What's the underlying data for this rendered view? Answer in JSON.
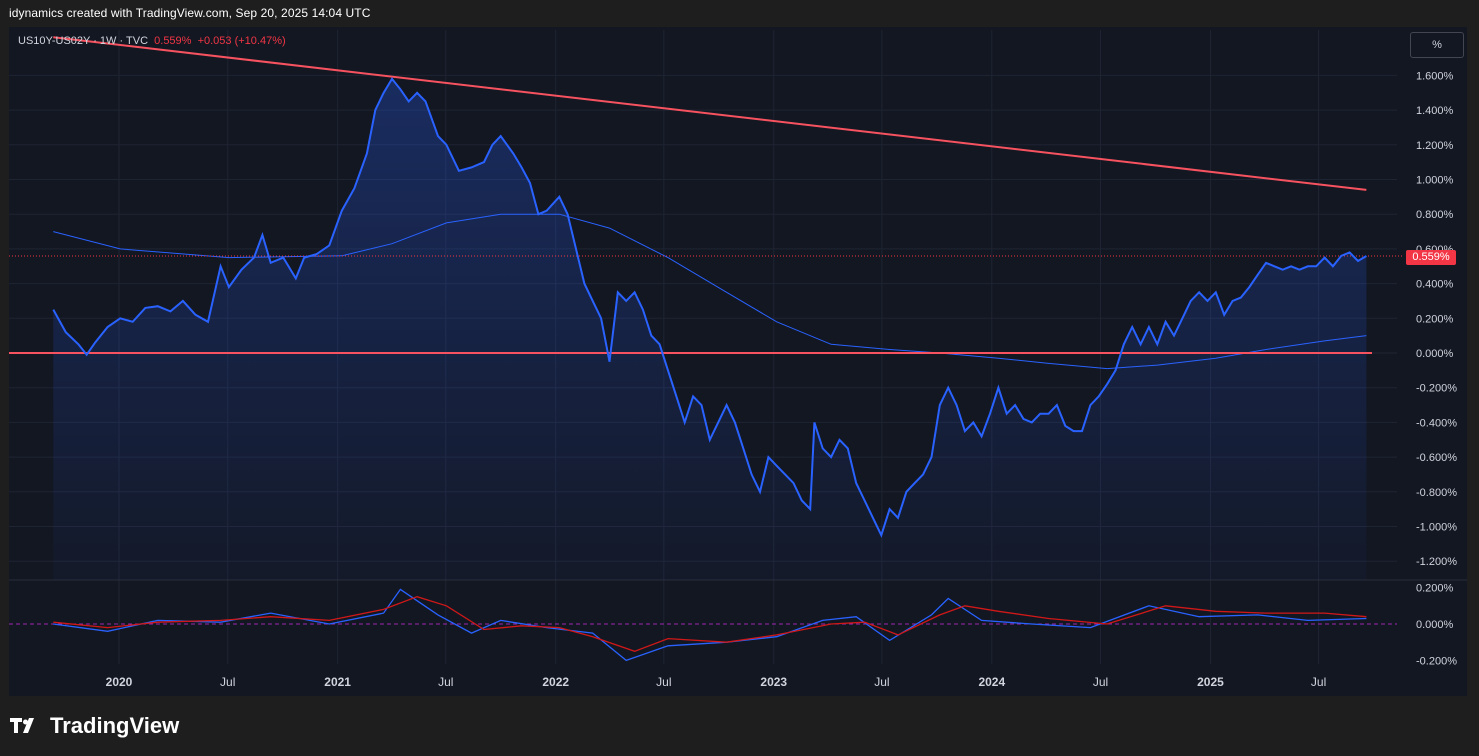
{
  "header": {
    "title": "idynamics created with TradingView.com, Sep 20, 2025 14:04 UTC"
  },
  "legend": {
    "symbol": "US10Y-US02Y · 1W · TVC",
    "price": "0.559%",
    "change": "+0.053 (+10.47%)"
  },
  "scale_button": "%",
  "last_price_label": "0.559%",
  "brand": {
    "name": "TradingView"
  },
  "colors": {
    "background": "#131722",
    "series": "#2962ff",
    "ma": "#2962ff",
    "trendline": "#f7525f",
    "zero_line": "#f7525f",
    "signal": "#ff0000"
  },
  "chart_data": [
    {
      "type": "area",
      "series_name": "US10Y-US02Y",
      "yunit": "%",
      "ylim": [
        -1.3,
        1.8
      ],
      "y_ticks": [
        "1.600%",
        "1.400%",
        "1.200%",
        "1.000%",
        "0.800%",
        "0.600%",
        "0.400%",
        "0.200%",
        "0.000%",
        "-0.200%",
        "-0.400%",
        "-0.600%",
        "-0.800%",
        "-1.000%",
        "-1.200%"
      ],
      "x_labels": [
        "2020",
        "Jul",
        "2021",
        "Jul",
        "2022",
        "Jul",
        "2023",
        "Jul",
        "2024",
        "Jul",
        "2025",
        "Jul"
      ],
      "x_label_dates": [
        "2020-01-01",
        "2020-07-01",
        "2021-01-01",
        "2021-07-01",
        "2022-01-01",
        "2022-07-01",
        "2023-01-01",
        "2023-07-01",
        "2024-01-01",
        "2024-07-01",
        "2025-01-01",
        "2025-07-01"
      ],
      "grid": true,
      "points": [
        [
          "2019-09-13",
          0.25
        ],
        [
          "2019-10-04",
          0.12
        ],
        [
          "2019-10-25",
          0.05
        ],
        [
          "2019-11-08",
          -0.01
        ],
        [
          "2019-11-22",
          0.06
        ],
        [
          "2019-12-13",
          0.15
        ],
        [
          "2020-01-03",
          0.2
        ],
        [
          "2020-01-24",
          0.18
        ],
        [
          "2020-02-14",
          0.26
        ],
        [
          "2020-03-06",
          0.27
        ],
        [
          "2020-03-27",
          0.24
        ],
        [
          "2020-04-17",
          0.3
        ],
        [
          "2020-05-08",
          0.22
        ],
        [
          "2020-05-29",
          0.18
        ],
        [
          "2020-06-19",
          0.5
        ],
        [
          "2020-07-03",
          0.38
        ],
        [
          "2020-07-24",
          0.48
        ],
        [
          "2020-08-14",
          0.55
        ],
        [
          "2020-08-28",
          0.68
        ],
        [
          "2020-09-11",
          0.52
        ],
        [
          "2020-10-02",
          0.55
        ],
        [
          "2020-10-23",
          0.43
        ],
        [
          "2020-11-06",
          0.55
        ],
        [
          "2020-11-27",
          0.57
        ],
        [
          "2020-12-18",
          0.62
        ],
        [
          "2021-01-08",
          0.82
        ],
        [
          "2021-01-29",
          0.95
        ],
        [
          "2021-02-19",
          1.15
        ],
        [
          "2021-03-05",
          1.4
        ],
        [
          "2021-03-19",
          1.5
        ],
        [
          "2021-04-02",
          1.58
        ],
        [
          "2021-04-16",
          1.52
        ],
        [
          "2021-04-30",
          1.45
        ],
        [
          "2021-05-14",
          1.5
        ],
        [
          "2021-05-28",
          1.45
        ],
        [
          "2021-06-18",
          1.25
        ],
        [
          "2021-07-02",
          1.2
        ],
        [
          "2021-07-23",
          1.05
        ],
        [
          "2021-08-13",
          1.07
        ],
        [
          "2021-09-03",
          1.1
        ],
        [
          "2021-09-17",
          1.2
        ],
        [
          "2021-10-01",
          1.25
        ],
        [
          "2021-10-22",
          1.15
        ],
        [
          "2021-11-05",
          1.07
        ],
        [
          "2021-11-19",
          0.98
        ],
        [
          "2021-12-03",
          0.8
        ],
        [
          "2021-12-17",
          0.82
        ],
        [
          "2022-01-07",
          0.9
        ],
        [
          "2022-01-21",
          0.8
        ],
        [
          "2022-02-04",
          0.6
        ],
        [
          "2022-02-18",
          0.4
        ],
        [
          "2022-03-04",
          0.3
        ],
        [
          "2022-03-18",
          0.2
        ],
        [
          "2022-04-01",
          -0.05
        ],
        [
          "2022-04-15",
          0.35
        ],
        [
          "2022-04-29",
          0.3
        ],
        [
          "2022-05-13",
          0.35
        ],
        [
          "2022-05-27",
          0.25
        ],
        [
          "2022-06-10",
          0.1
        ],
        [
          "2022-06-24",
          0.05
        ],
        [
          "2022-07-08",
          -0.1
        ],
        [
          "2022-07-22",
          -0.25
        ],
        [
          "2022-08-05",
          -0.4
        ],
        [
          "2022-08-19",
          -0.25
        ],
        [
          "2022-09-02",
          -0.3
        ],
        [
          "2022-09-16",
          -0.5
        ],
        [
          "2022-09-30",
          -0.4
        ],
        [
          "2022-10-14",
          -0.3
        ],
        [
          "2022-10-28",
          -0.4
        ],
        [
          "2022-11-11",
          -0.55
        ],
        [
          "2022-11-25",
          -0.7
        ],
        [
          "2022-12-09",
          -0.8
        ],
        [
          "2022-12-23",
          -0.6
        ],
        [
          "2023-01-06",
          -0.65
        ],
        [
          "2023-01-20",
          -0.7
        ],
        [
          "2023-02-03",
          -0.75
        ],
        [
          "2023-02-17",
          -0.85
        ],
        [
          "2023-03-03",
          -0.9
        ],
        [
          "2023-03-10",
          -0.4
        ],
        [
          "2023-03-24",
          -0.55
        ],
        [
          "2023-04-07",
          -0.6
        ],
        [
          "2023-04-21",
          -0.5
        ],
        [
          "2023-05-05",
          -0.55
        ],
        [
          "2023-05-19",
          -0.75
        ],
        [
          "2023-06-02",
          -0.85
        ],
        [
          "2023-06-16",
          -0.95
        ],
        [
          "2023-06-30",
          -1.05
        ],
        [
          "2023-07-14",
          -0.9
        ],
        [
          "2023-07-28",
          -0.95
        ],
        [
          "2023-08-11",
          -0.8
        ],
        [
          "2023-08-25",
          -0.75
        ],
        [
          "2023-09-08",
          -0.7
        ],
        [
          "2023-09-22",
          -0.6
        ],
        [
          "2023-10-06",
          -0.3
        ],
        [
          "2023-10-20",
          -0.2
        ],
        [
          "2023-11-03",
          -0.3
        ],
        [
          "2023-11-17",
          -0.45
        ],
        [
          "2023-12-01",
          -0.4
        ],
        [
          "2023-12-15",
          -0.48
        ],
        [
          "2023-12-29",
          -0.35
        ],
        [
          "2024-01-12",
          -0.2
        ],
        [
          "2024-01-26",
          -0.35
        ],
        [
          "2024-02-09",
          -0.3
        ],
        [
          "2024-02-23",
          -0.38
        ],
        [
          "2024-03-08",
          -0.4
        ],
        [
          "2024-03-22",
          -0.35
        ],
        [
          "2024-04-05",
          -0.35
        ],
        [
          "2024-04-19",
          -0.3
        ],
        [
          "2024-05-03",
          -0.42
        ],
        [
          "2024-05-17",
          -0.45
        ],
        [
          "2024-05-31",
          -0.45
        ],
        [
          "2024-06-14",
          -0.3
        ],
        [
          "2024-06-28",
          -0.25
        ],
        [
          "2024-07-12",
          -0.18
        ],
        [
          "2024-07-26",
          -0.1
        ],
        [
          "2024-08-09",
          0.05
        ],
        [
          "2024-08-23",
          0.15
        ],
        [
          "2024-09-06",
          0.05
        ],
        [
          "2024-09-20",
          0.15
        ],
        [
          "2024-10-04",
          0.05
        ],
        [
          "2024-10-18",
          0.18
        ],
        [
          "2024-11-01",
          0.1
        ],
        [
          "2024-11-15",
          0.2
        ],
        [
          "2024-11-29",
          0.3
        ],
        [
          "2024-12-13",
          0.35
        ],
        [
          "2024-12-27",
          0.3
        ],
        [
          "2025-01-10",
          0.35
        ],
        [
          "2025-01-24",
          0.22
        ],
        [
          "2025-02-07",
          0.3
        ],
        [
          "2025-02-21",
          0.32
        ],
        [
          "2025-03-07",
          0.38
        ],
        [
          "2025-03-21",
          0.45
        ],
        [
          "2025-04-04",
          0.52
        ],
        [
          "2025-04-18",
          0.5
        ],
        [
          "2025-05-02",
          0.48
        ],
        [
          "2025-05-16",
          0.5
        ],
        [
          "2025-05-30",
          0.48
        ],
        [
          "2025-06-13",
          0.5
        ],
        [
          "2025-06-27",
          0.5
        ],
        [
          "2025-07-11",
          0.55
        ],
        [
          "2025-07-25",
          0.5
        ],
        [
          "2025-08-08",
          0.56
        ],
        [
          "2025-08-22",
          0.58
        ],
        [
          "2025-09-05",
          0.53
        ],
        [
          "2025-09-19",
          0.559
        ]
      ],
      "moving_average": [
        [
          "2019-09-13",
          0.7
        ],
        [
          "2020-01-03",
          0.6
        ],
        [
          "2020-07-03",
          0.55
        ],
        [
          "2021-01-08",
          0.56
        ],
        [
          "2021-04-02",
          0.63
        ],
        [
          "2021-07-02",
          0.75
        ],
        [
          "2021-10-01",
          0.8
        ],
        [
          "2022-01-07",
          0.8
        ],
        [
          "2022-04-01",
          0.72
        ],
        [
          "2022-07-08",
          0.55
        ],
        [
          "2022-10-14",
          0.35
        ],
        [
          "2023-01-06",
          0.18
        ],
        [
          "2023-04-07",
          0.05
        ],
        [
          "2023-07-14",
          0.02
        ],
        [
          "2023-10-06",
          0.0
        ],
        [
          "2024-01-12",
          -0.03
        ],
        [
          "2024-04-05",
          -0.06
        ],
        [
          "2024-07-12",
          -0.09
        ],
        [
          "2024-10-04",
          -0.07
        ],
        [
          "2025-01-10",
          -0.03
        ],
        [
          "2025-04-04",
          0.02
        ],
        [
          "2025-07-11",
          0.07
        ],
        [
          "2025-09-19",
          0.1
        ]
      ],
      "trendline": {
        "from": [
          "2019-09-13",
          1.82
        ],
        "to": [
          "2025-09-19",
          0.94
        ]
      },
      "zero_line": 0.0,
      "last_value": 0.559
    },
    {
      "type": "line",
      "ylim": [
        -0.22,
        0.22
      ],
      "y_ticks": [
        "0.200%",
        "0.000%",
        "-0.200%"
      ],
      "series": [
        {
          "values": [
            [
              "2019-09-13",
              0.0
            ],
            [
              "2019-12-13",
              -0.04
            ],
            [
              "2020-03-06",
              0.02
            ],
            [
              "2020-06-19",
              0.01
            ],
            [
              "2020-09-11",
              0.06
            ],
            [
              "2020-12-18",
              0.0
            ],
            [
              "2021-03-19",
              0.06
            ],
            [
              "2021-04-16",
              0.19
            ],
            [
              "2021-06-18",
              0.05
            ],
            [
              "2021-08-13",
              -0.05
            ],
            [
              "2021-10-01",
              0.02
            ],
            [
              "2021-12-17",
              -0.02
            ],
            [
              "2022-03-04",
              -0.05
            ],
            [
              "2022-04-29",
              -0.2
            ],
            [
              "2022-07-08",
              -0.12
            ],
            [
              "2022-10-14",
              -0.1
            ],
            [
              "2023-01-06",
              -0.07
            ],
            [
              "2023-03-24",
              0.02
            ],
            [
              "2023-05-19",
              0.04
            ],
            [
              "2023-07-14",
              -0.09
            ],
            [
              "2023-09-22",
              0.05
            ],
            [
              "2023-10-20",
              0.14
            ],
            [
              "2023-12-15",
              0.02
            ],
            [
              "2024-03-08",
              0.0
            ],
            [
              "2024-06-14",
              -0.02
            ],
            [
              "2024-09-20",
              0.1
            ],
            [
              "2024-12-13",
              0.04
            ],
            [
              "2025-03-21",
              0.05
            ],
            [
              "2025-06-13",
              0.02
            ],
            [
              "2025-09-19",
              0.03
            ]
          ]
        },
        {
          "values": [
            [
              "2019-09-13",
              0.01
            ],
            [
              "2019-12-13",
              -0.02
            ],
            [
              "2020-03-06",
              0.01
            ],
            [
              "2020-06-19",
              0.02
            ],
            [
              "2020-09-11",
              0.04
            ],
            [
              "2020-12-18",
              0.02
            ],
            [
              "2021-03-19",
              0.08
            ],
            [
              "2021-05-14",
              0.15
            ],
            [
              "2021-07-02",
              0.1
            ],
            [
              "2021-09-03",
              -0.03
            ],
            [
              "2021-11-05",
              -0.01
            ],
            [
              "2022-01-07",
              -0.02
            ],
            [
              "2022-03-04",
              -0.07
            ],
            [
              "2022-05-13",
              -0.15
            ],
            [
              "2022-07-08",
              -0.08
            ],
            [
              "2022-10-14",
              -0.1
            ],
            [
              "2023-01-06",
              -0.06
            ],
            [
              "2023-04-07",
              0.0
            ],
            [
              "2023-06-02",
              0.01
            ],
            [
              "2023-07-28",
              -0.06
            ],
            [
              "2023-10-06",
              0.05
            ],
            [
              "2023-11-17",
              0.1
            ],
            [
              "2024-01-12",
              0.07
            ],
            [
              "2024-04-05",
              0.03
            ],
            [
              "2024-07-12",
              0.0
            ],
            [
              "2024-10-18",
              0.1
            ],
            [
              "2025-01-10",
              0.07
            ],
            [
              "2025-04-04",
              0.06
            ],
            [
              "2025-07-11",
              0.06
            ],
            [
              "2025-09-19",
              0.04
            ]
          ]
        }
      ]
    }
  ]
}
